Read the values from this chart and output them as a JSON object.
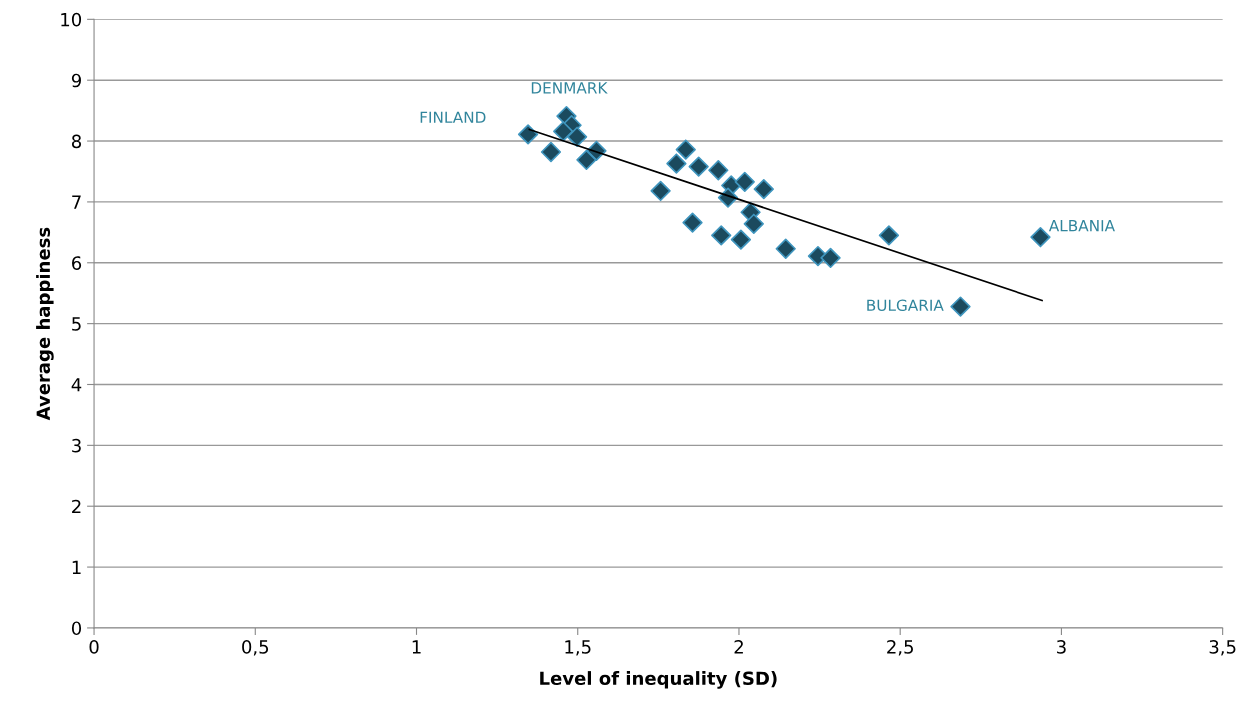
{
  "chart_data": {
    "type": "scatter",
    "xlabel": "Level of inequality (SD)",
    "ylabel": "Average happiness",
    "series": [
      {
        "color": "#1b4a5e",
        "marker": "diamond",
        "x": [
          1.346,
          1.465,
          1.481,
          1.455,
          1.498,
          1.417,
          1.558,
          1.527,
          1.835,
          1.806,
          1.875,
          1.936,
          1.976,
          2.018,
          2.077,
          1.757,
          1.966,
          2.036,
          2.046,
          1.856,
          1.945,
          2.006,
          2.145,
          2.245,
          2.284,
          2.465,
          2.935,
          2.687
        ],
        "values": [
          8.11,
          8.41,
          8.26,
          8.16,
          8.07,
          7.82,
          7.84,
          7.69,
          7.86,
          7.63,
          7.58,
          7.52,
          7.27,
          7.33,
          7.21,
          7.18,
          7.07,
          6.83,
          6.64,
          6.66,
          6.45,
          6.38,
          6.23,
          6.11,
          6.08,
          6.45,
          6.42,
          5.28
        ]
      },
      {
        "type": "line",
        "color": "#000000",
        "marker": "none",
        "x": [
          1.35,
          2.94
        ],
        "values": [
          8.19,
          5.38
        ]
      }
    ],
    "annotations": [
      {
        "text": "FINLAND",
        "x": 1.346,
        "y": 8.11
      },
      {
        "text": "DENMARK",
        "x": 1.465,
        "y": 8.41
      },
      {
        "text": "ALBANIA",
        "x": 2.935,
        "y": 6.42
      },
      {
        "text": "BULGARIA",
        "x": 2.687,
        "y": 5.28
      }
    ],
    "xlim": [
      0,
      3.5
    ],
    "ylim": [
      0,
      10
    ],
    "xticks": [
      0,
      {
        "value": 0.5,
        "label": "0,5"
      },
      1,
      {
        "value": 1.5,
        "label": "1,5"
      },
      2,
      {
        "value": 2.5,
        "label": "2,5"
      },
      3,
      {
        "value": 3.5,
        "label": "3,5"
      }
    ],
    "yticks": [
      0,
      1,
      2,
      3,
      4,
      5,
      6,
      7,
      8,
      9,
      10
    ],
    "grid": "y",
    "legend": false
  }
}
